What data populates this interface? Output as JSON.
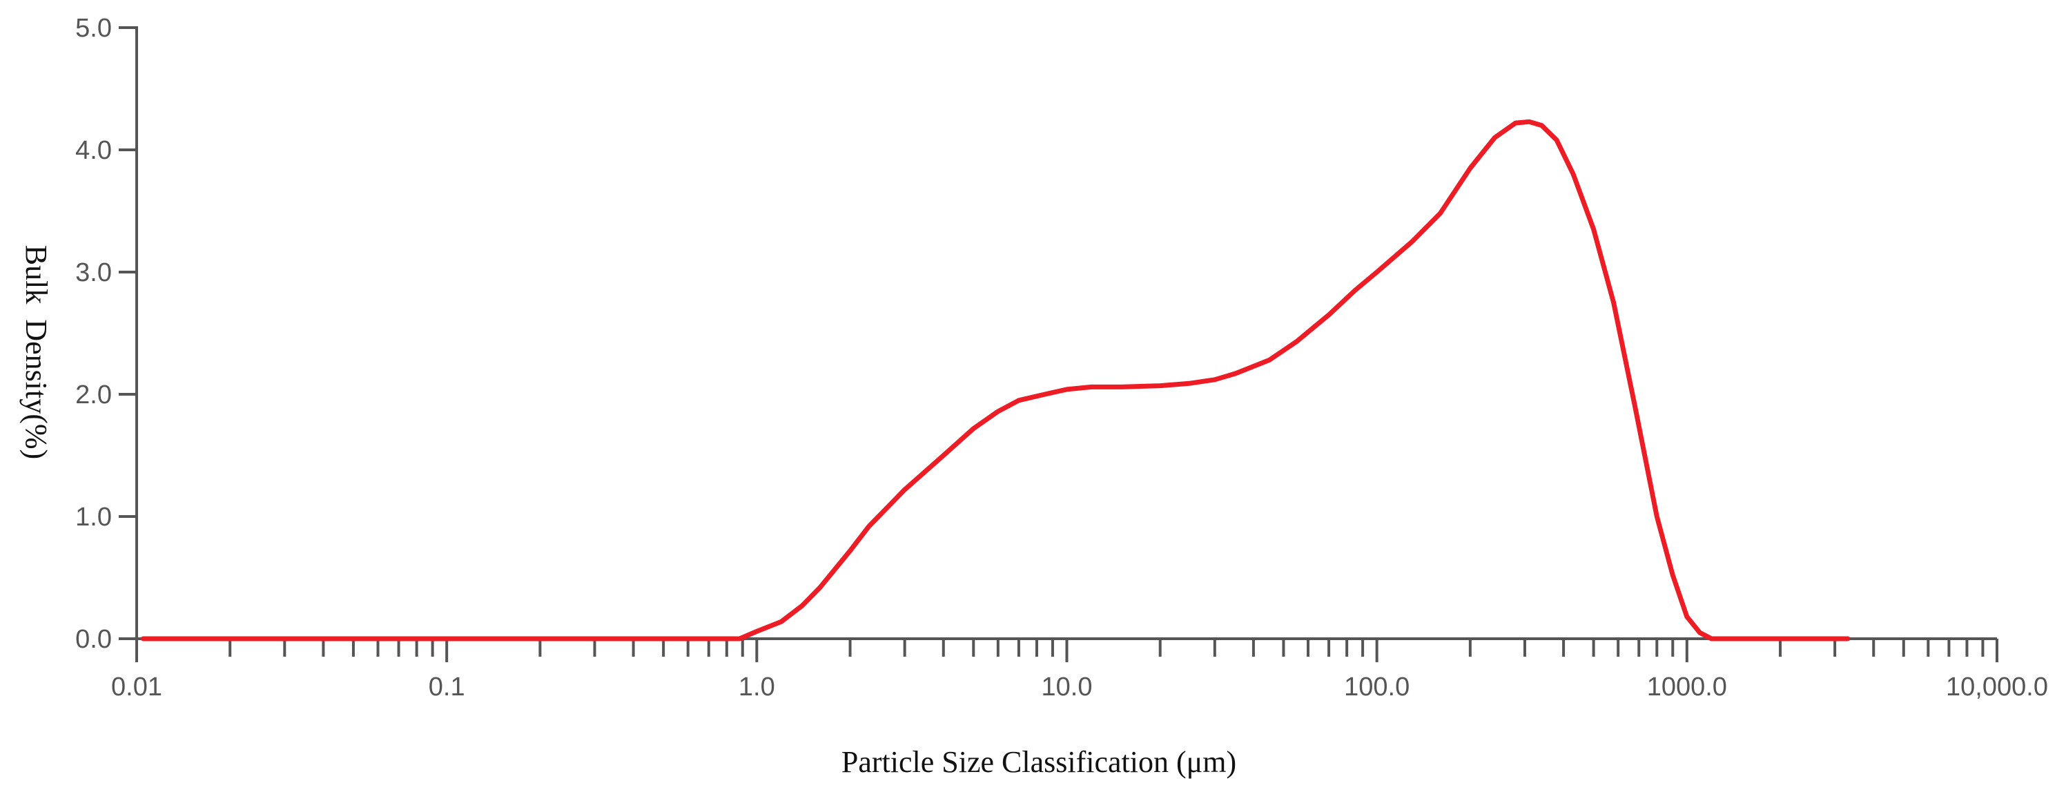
{
  "chart_data": {
    "type": "line",
    "title": "",
    "xlabel": "Particle Size Classification (μm)",
    "ylabel": "Bulk  Density(%)",
    "x_scale": "log",
    "xlim": [
      0.01,
      10000
    ],
    "ylim": [
      0,
      5
    ],
    "grid": false,
    "x_ticks": [
      {
        "value": 0.01,
        "label": "0.01"
      },
      {
        "value": 0.1,
        "label": "0.1"
      },
      {
        "value": 1,
        "label": "1.0"
      },
      {
        "value": 10,
        "label": "10.0"
      },
      {
        "value": 100,
        "label": "100.0"
      },
      {
        "value": 1000,
        "label": "1000.0"
      },
      {
        "value": 10000,
        "label": "10,000.0"
      }
    ],
    "y_ticks": [
      {
        "value": 0,
        "label": "0.0"
      },
      {
        "value": 1,
        "label": "1.0"
      },
      {
        "value": 2,
        "label": "2.0"
      },
      {
        "value": 3,
        "label": "3.0"
      },
      {
        "value": 4,
        "label": "4.0"
      },
      {
        "value": 5,
        "label": "5.0"
      }
    ],
    "series_color": "#ee1c24",
    "axis_color": "#555555",
    "series": [
      {
        "points": [
          [
            0.0105,
            0.0
          ],
          [
            0.1,
            0.0
          ],
          [
            0.5,
            0.0
          ],
          [
            0.88,
            0.0
          ],
          [
            1.0,
            0.06
          ],
          [
            1.2,
            0.14
          ],
          [
            1.4,
            0.27
          ],
          [
            1.6,
            0.42
          ],
          [
            2.0,
            0.72
          ],
          [
            2.3,
            0.92
          ],
          [
            3.0,
            1.22
          ],
          [
            4.0,
            1.5
          ],
          [
            5.0,
            1.72
          ],
          [
            6.0,
            1.86
          ],
          [
            7.0,
            1.95
          ],
          [
            8.5,
            2.0
          ],
          [
            10.0,
            2.04
          ],
          [
            12.0,
            2.06
          ],
          [
            15.0,
            2.06
          ],
          [
            20.0,
            2.07
          ],
          [
            25.0,
            2.09
          ],
          [
            30.0,
            2.12
          ],
          [
            35.0,
            2.17
          ],
          [
            45.0,
            2.28
          ],
          [
            55.0,
            2.43
          ],
          [
            70.0,
            2.65
          ],
          [
            85.0,
            2.85
          ],
          [
            100.0,
            3.0
          ],
          [
            130.0,
            3.25
          ],
          [
            160.0,
            3.48
          ],
          [
            200.0,
            3.85
          ],
          [
            240.0,
            4.1
          ],
          [
            280.0,
            4.22
          ],
          [
            310.0,
            4.23
          ],
          [
            340.0,
            4.2
          ],
          [
            380.0,
            4.08
          ],
          [
            430.0,
            3.8
          ],
          [
            500.0,
            3.35
          ],
          [
            580.0,
            2.75
          ],
          [
            680.0,
            1.9
          ],
          [
            800.0,
            1.0
          ],
          [
            900.0,
            0.52
          ],
          [
            1000.0,
            0.18
          ],
          [
            1100.0,
            0.05
          ],
          [
            1200.0,
            0.0
          ],
          [
            2000.0,
            0.0
          ],
          [
            3300.0,
            0.0
          ]
        ]
      }
    ]
  }
}
